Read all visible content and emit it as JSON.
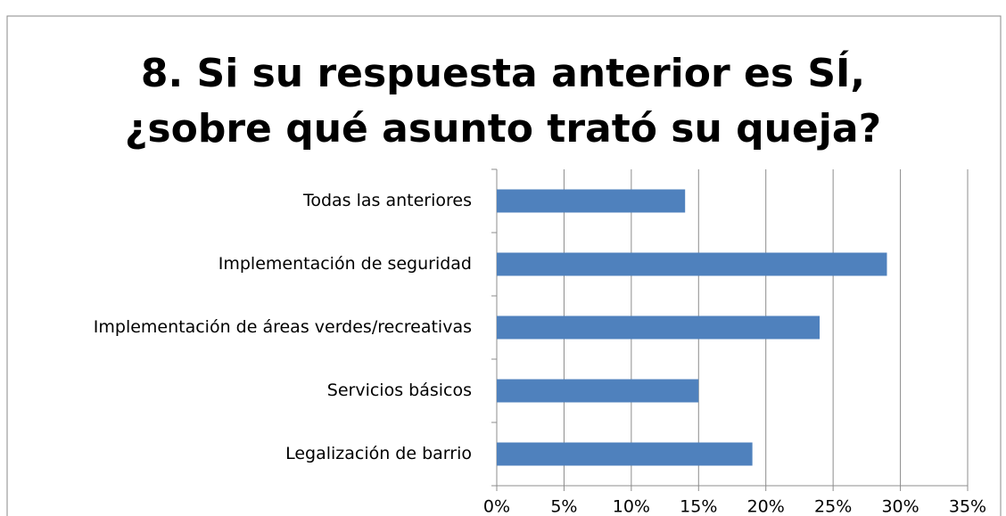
{
  "chart_data": {
    "type": "bar",
    "orientation": "horizontal",
    "title": "8. Si su respuesta anterior es SÍ, ¿sobre qué asunto trató su queja?",
    "categories": [
      "Todas las anteriores",
      "Implementación de seguridad",
      "Implementación de áreas verdes/recreativas",
      "Servicios básicos",
      "Legalización de barrio"
    ],
    "values": [
      14,
      29,
      24,
      15,
      19
    ],
    "color": "#4f81bd",
    "xlim": [
      0,
      35
    ],
    "xticks": [
      {
        "value": 0,
        "label": "0%"
      },
      {
        "value": 5,
        "label": "5%"
      },
      {
        "value": 10,
        "label": "10%"
      },
      {
        "value": 15,
        "label": "15%"
      },
      {
        "value": 20,
        "label": "20%"
      },
      {
        "value": 25,
        "label": "25%"
      },
      {
        "value": 30,
        "label": "30%"
      },
      {
        "value": 35,
        "label": "35%"
      }
    ],
    "grid": true
  }
}
